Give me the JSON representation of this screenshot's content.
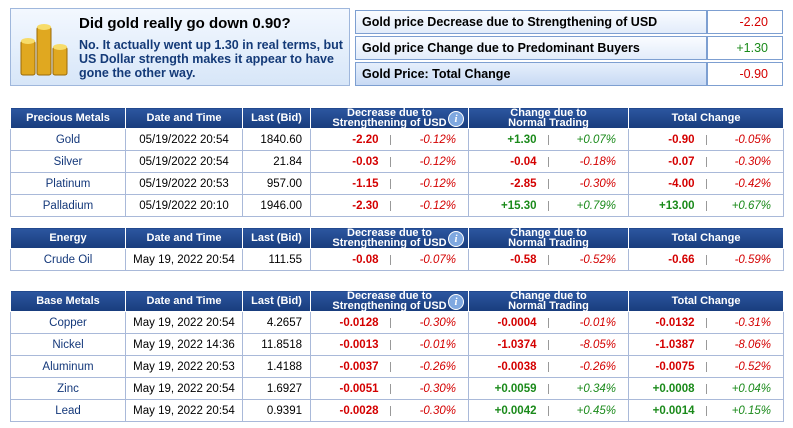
{
  "summary": {
    "title": "Did gold really go down 0.90?",
    "text": "No. It actually went up 1.30 in real terms, but US Dollar strength makes it appear to have gone the other way.",
    "rows": [
      {
        "label": "Gold price Decrease due to Strengthening of USD",
        "value": "-2.20"
      },
      {
        "label": "Gold price Change due to Predominant Buyers",
        "value": "+1.30"
      },
      {
        "label": "Gold Price: Total Change",
        "value": "-0.90"
      }
    ]
  },
  "tables": [
    {
      "headers": [
        "Precious Metals",
        "Date and Time",
        "Last (Bid)",
        [
          "Decrease due to",
          "Strengthening of USD"
        ],
        [
          "Change due to",
          "Normal Trading"
        ],
        "Total Change"
      ],
      "rows": [
        [
          "Gold",
          "05/19/2022 20:54",
          "1840.60",
          "-2.20",
          "-0.12%",
          "+1.30",
          "+0.07%",
          "-0.90",
          "-0.05%"
        ],
        [
          "Silver",
          "05/19/2022 20:54",
          "21.84",
          "-0.03",
          "-0.12%",
          "-0.04",
          "-0.18%",
          "-0.07",
          "-0.30%"
        ],
        [
          "Platinum",
          "05/19/2022 20:53",
          "957.00",
          "-1.15",
          "-0.12%",
          "-2.85",
          "-0.30%",
          "-4.00",
          "-0.42%"
        ],
        [
          "Palladium",
          "05/19/2022 20:10",
          "1946.00",
          "-2.30",
          "-0.12%",
          "+15.30",
          "+0.79%",
          "+13.00",
          "+0.67%"
        ]
      ]
    },
    {
      "headers": [
        "Energy",
        "Date and Time",
        "Last (Bid)",
        [
          "Decrease due to",
          "Strengthening of USD"
        ],
        [
          "Change due to",
          "Normal Trading"
        ],
        "Total Change"
      ],
      "rows": [
        [
          "Crude Oil",
          "May 19, 2022 20:54",
          "111.55",
          "-0.08",
          "-0.07%",
          "-0.58",
          "-0.52%",
          "-0.66",
          "-0.59%"
        ]
      ]
    },
    {
      "headers": [
        "Base Metals",
        "Date and Time",
        "Last (Bid)",
        [
          "Decrease due to",
          "Strengthening of USD"
        ],
        [
          "Change due to",
          "Normal Trading"
        ],
        "Total Change"
      ],
      "rows": [
        [
          "Copper",
          "May 19, 2022 20:54",
          "4.2657",
          "-0.0128",
          "-0.30%",
          "-0.0004",
          "-0.01%",
          "-0.0132",
          "-0.31%"
        ],
        [
          "Nickel",
          "May 19, 2022 14:36",
          "11.8518",
          "-0.0013",
          "-0.01%",
          "-1.0374",
          "-8.05%",
          "-1.0387",
          "-8.06%"
        ],
        [
          "Aluminum",
          "May 19, 2022 20:53",
          "1.4188",
          "-0.0037",
          "-0.26%",
          "-0.0038",
          "-0.26%",
          "-0.0075",
          "-0.52%"
        ],
        [
          "Zinc",
          "May 19, 2022 20:54",
          "1.6927",
          "-0.0051",
          "-0.30%",
          "+0.0059",
          "+0.34%",
          "+0.0008",
          "+0.04%"
        ],
        [
          "Lead",
          "May 19, 2022 20:54",
          "0.9391",
          "-0.0028",
          "-0.30%",
          "+0.0042",
          "+0.45%",
          "+0.0014",
          "+0.15%"
        ]
      ]
    }
  ]
}
